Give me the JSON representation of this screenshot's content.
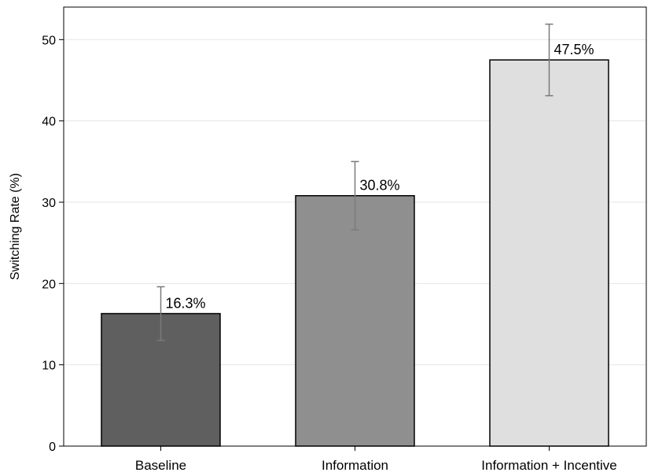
{
  "chart_data": {
    "type": "bar",
    "title": "",
    "xlabel": "",
    "ylabel": "Switching Rate (%)",
    "categories": [
      "Baseline",
      "Information",
      "Information + Incentive"
    ],
    "values": [
      16.3,
      30.8,
      47.5
    ],
    "value_labels": [
      "16.3%",
      "30.8%",
      "47.5%"
    ],
    "error_bars": [
      {
        "low": 13.0,
        "high": 19.6
      },
      {
        "low": 26.6,
        "high": 35.0
      },
      {
        "low": 43.1,
        "high": 51.9
      }
    ],
    "bar_colors": [
      "#5f5f5f",
      "#8f8f8f",
      "#dfdfdf"
    ],
    "ylim": [
      0,
      54
    ],
    "yticks": [
      0,
      10,
      20,
      30,
      40,
      50
    ],
    "grid": true,
    "legend": false
  }
}
